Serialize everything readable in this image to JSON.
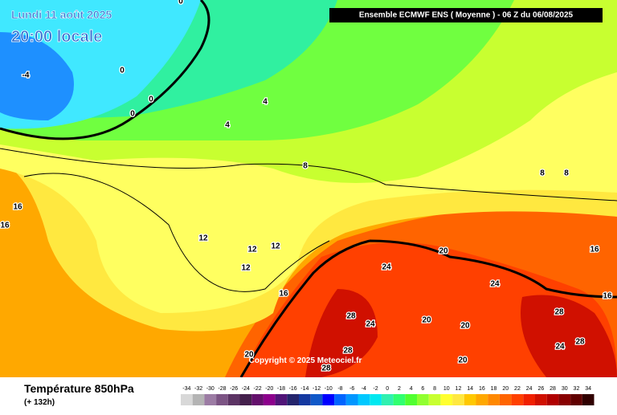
{
  "header": {
    "date": "Lundi 11 août 2025",
    "time": "20:00 locale",
    "model": "Ensemble ECMWF ENS  ( Moyenne )  -  06 Z du 06/08/2025",
    "copyright": "Copyright © 2025 Meteociel.fr"
  },
  "footer": {
    "title": "Température 850hPa",
    "lead": "(+ 132h)"
  },
  "map": {
    "contour_labels": [
      0,
      0,
      0,
      0,
      -4,
      4,
      4,
      8,
      8,
      8,
      16,
      16,
      12,
      12,
      12,
      12,
      16,
      20,
      24,
      20,
      24,
      16,
      16,
      28,
      24,
      20,
      20,
      28,
      24,
      28,
      28,
      28,
      20
    ]
  },
  "legend": {
    "values": [
      -34,
      -32,
      -30,
      -28,
      -26,
      -24,
      -22,
      -20,
      -18,
      -16,
      -14,
      -12,
      -10,
      -8,
      -6,
      -4,
      -2,
      0,
      2,
      4,
      6,
      8,
      10,
      12,
      14,
      16,
      18,
      20,
      22,
      24,
      26,
      28,
      30,
      32,
      34
    ],
    "colors": [
      "#d8d8d8",
      "#b4b4b4",
      "#9c7ca4",
      "#7c5484",
      "#5c3464",
      "#44204c",
      "#64106c",
      "#8c008c",
      "#501478",
      "#24246c",
      "#1438a0",
      "#1058c8",
      "#0000ff",
      "#0064ff",
      "#0096ff",
      "#00c8ff",
      "#00e8f0",
      "#30f0b0",
      "#30ff70",
      "#50ff30",
      "#90ff30",
      "#c8ff30",
      "#ffff30",
      "#ffe840",
      "#ffc800",
      "#ffa800",
      "#ff8800",
      "#ff6400",
      "#ff4000",
      "#f02000",
      "#d01000",
      "#b00000",
      "#880000",
      "#600000",
      "#300000"
    ]
  }
}
